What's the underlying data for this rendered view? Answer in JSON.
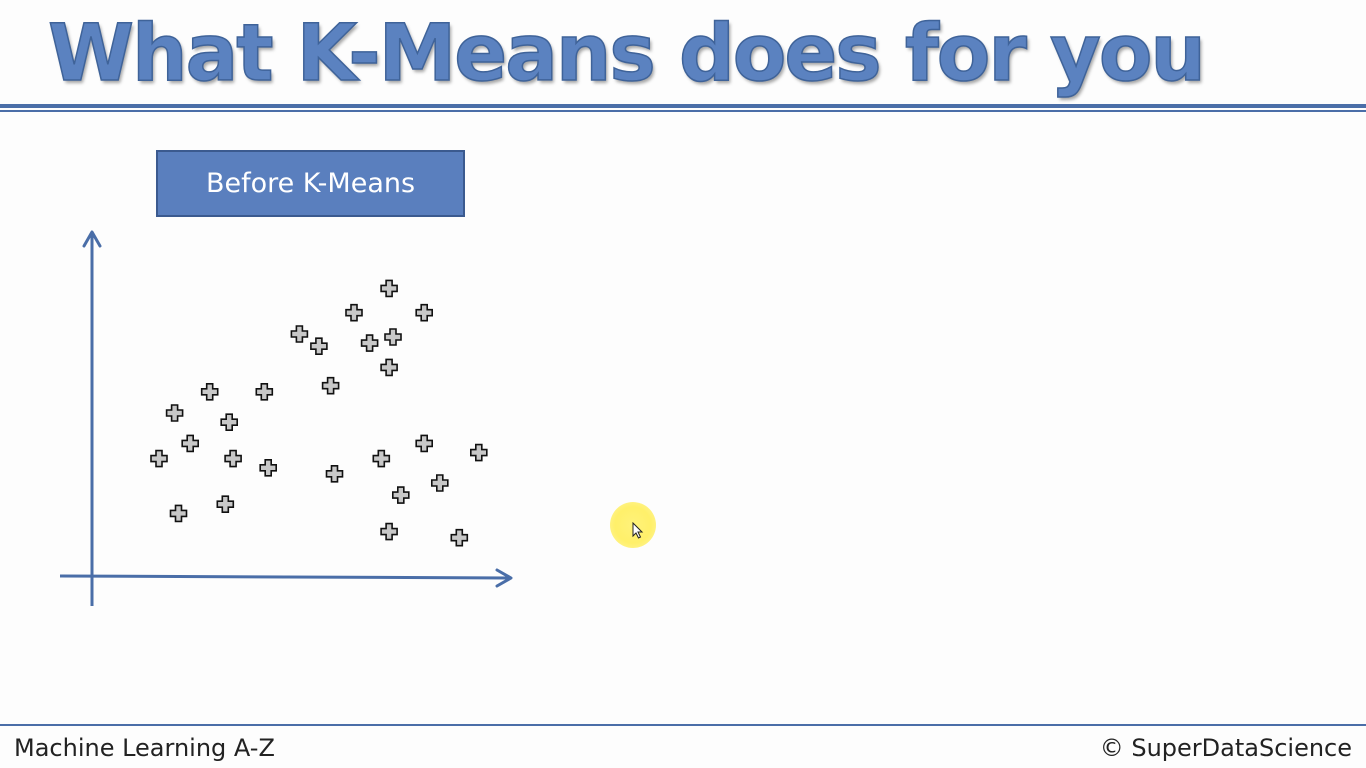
{
  "slide": {
    "title": "What K-Means does for you",
    "label": "Before K-Means",
    "footer_left": "Machine Learning A-Z",
    "footer_right": "© SuperDataScience"
  },
  "colors": {
    "title": "#5b82c0",
    "accent": "#4a6ea8",
    "label_bg": "#5a7fbe",
    "marker_fill": "#c8c8c8",
    "marker_stroke": "#111111",
    "cursor_highlight": "#fff06a"
  },
  "icons": {
    "marker": "plus-marker-icon",
    "cursor": "mouse-pointer-icon"
  },
  "chart_data": {
    "type": "scatter",
    "title": "",
    "xlabel": "",
    "ylabel": "",
    "xlim": [
      0,
      100
    ],
    "ylim": [
      0,
      100
    ],
    "grid": false,
    "marker": "plus",
    "points": [
      {
        "x": 69,
        "y": 90
      },
      {
        "x": 60,
        "y": 82
      },
      {
        "x": 78,
        "y": 82
      },
      {
        "x": 46,
        "y": 75
      },
      {
        "x": 51,
        "y": 71
      },
      {
        "x": 64,
        "y": 72
      },
      {
        "x": 70,
        "y": 74
      },
      {
        "x": 69,
        "y": 64
      },
      {
        "x": 54,
        "y": 58
      },
      {
        "x": 23,
        "y": 56
      },
      {
        "x": 37,
        "y": 56
      },
      {
        "x": 14,
        "y": 49
      },
      {
        "x": 28,
        "y": 46
      },
      {
        "x": 18,
        "y": 39
      },
      {
        "x": 10,
        "y": 34
      },
      {
        "x": 29,
        "y": 34
      },
      {
        "x": 38,
        "y": 31
      },
      {
        "x": 15,
        "y": 16
      },
      {
        "x": 27,
        "y": 19
      },
      {
        "x": 55,
        "y": 29
      },
      {
        "x": 67,
        "y": 34
      },
      {
        "x": 78,
        "y": 39
      },
      {
        "x": 92,
        "y": 36
      },
      {
        "x": 72,
        "y": 22
      },
      {
        "x": 82,
        "y": 26
      },
      {
        "x": 69,
        "y": 10
      },
      {
        "x": 87,
        "y": 8
      }
    ]
  }
}
